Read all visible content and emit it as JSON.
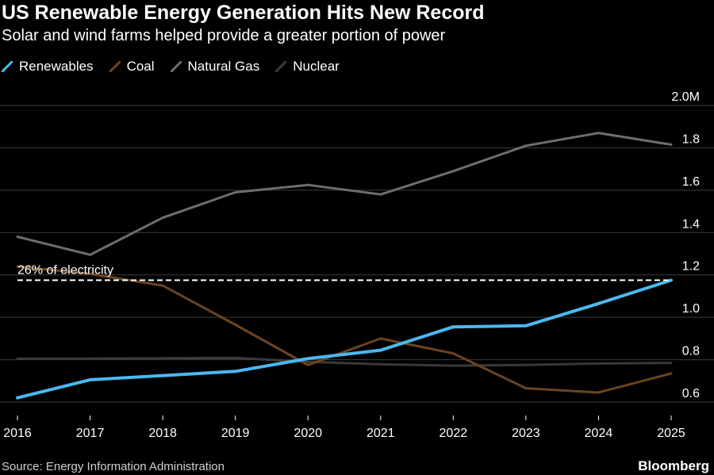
{
  "chart_data": {
    "type": "line",
    "title": "US Renewable Energy Generation Hits New Record",
    "subtitle": "Solar and wind farms helped provide a greater portion of power",
    "x": [
      2016,
      2017,
      2018,
      2019,
      2020,
      2021,
      2022,
      2023,
      2024,
      2025
    ],
    "x_tick_labels": [
      "2016",
      "2017",
      "2018",
      "2019",
      "2020",
      "2021",
      "2022",
      "2023",
      "2024",
      "2025"
    ],
    "ylim": [
      0.6,
      2.0
    ],
    "y_ticks": [
      0.6,
      0.8,
      1.0,
      1.2,
      1.4,
      1.6,
      1.8,
      2.0
    ],
    "y_tick_labels": [
      "0.6",
      "0.8",
      "1.0",
      "1.2",
      "1.4",
      "1.6",
      "1.8",
      "2.0M"
    ],
    "grid": true,
    "legend_position": "top-left",
    "series": [
      {
        "name": "Renewables",
        "color": "#4ab8f0",
        "values": [
          0.62,
          0.705,
          0.725,
          0.745,
          0.805,
          0.845,
          0.955,
          0.96,
          1.065,
          1.175
        ]
      },
      {
        "name": "Coal",
        "color": "#6b4420",
        "values": [
          1.24,
          1.205,
          1.15,
          0.965,
          0.775,
          0.9,
          0.83,
          0.665,
          0.645,
          0.735
        ]
      },
      {
        "name": "Natural Gas",
        "color": "#6e6e6e",
        "values": [
          1.38,
          1.295,
          1.47,
          1.59,
          1.625,
          1.58,
          1.69,
          1.81,
          1.87,
          1.815
        ]
      },
      {
        "name": "Nuclear",
        "color": "#3a3a3a",
        "values": [
          0.805,
          0.805,
          0.807,
          0.808,
          0.79,
          0.778,
          0.772,
          0.775,
          0.782,
          0.785
        ]
      }
    ],
    "annotation": {
      "text": "26% of electricity",
      "value": 1.175
    }
  },
  "source_text": "Source: Energy Information Administration",
  "brand_text": "Bloomberg"
}
